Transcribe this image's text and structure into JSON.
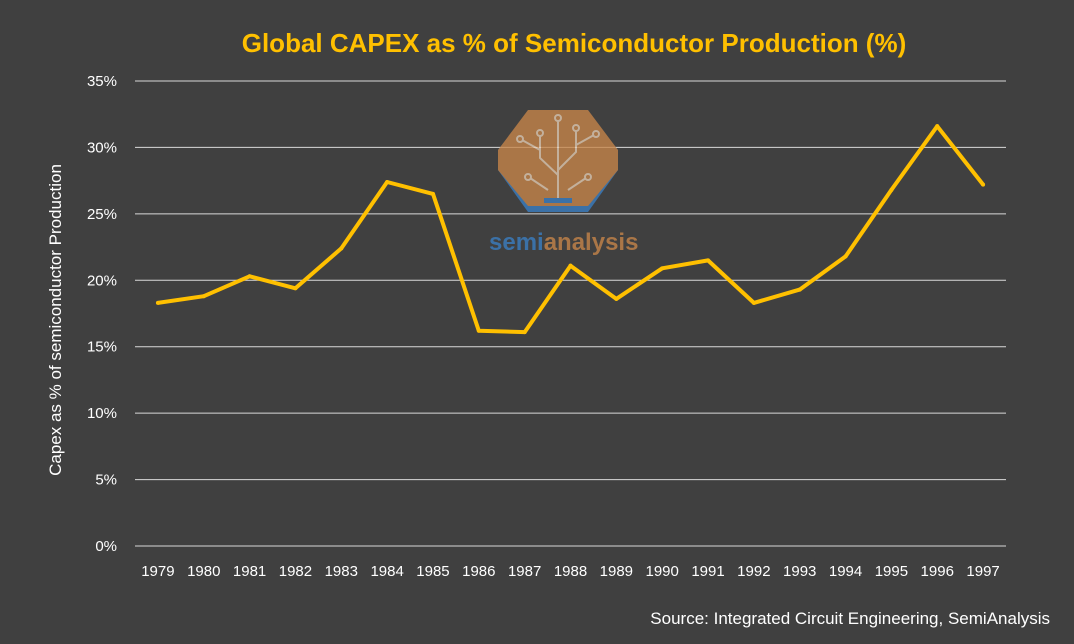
{
  "colors": {
    "background": "#404040",
    "title": "#FFC000",
    "line": "#FFC000",
    "grid": "#D9D9D9",
    "text": "#FFFFFF",
    "watermark_orange": "#C8864A",
    "watermark_blue": "#3A7FC4"
  },
  "watermark": {
    "text_semi": "semi",
    "text_analysis": "analysis"
  },
  "source": "Source: Integrated Circuit Engineering, SemiAnalysis",
  "chart_data": {
    "type": "line",
    "title": "Global CAPEX as % of Semiconductor Production (%)",
    "xlabel": "",
    "ylabel": "Capex as % of semiconductor Production",
    "categories": [
      "1979",
      "1980",
      "1981",
      "1982",
      "1983",
      "1984",
      "1985",
      "1986",
      "1987",
      "1988",
      "1989",
      "1990",
      "1991",
      "1992",
      "1993",
      "1994",
      "1995",
      "1996",
      "1997"
    ],
    "series": [
      {
        "name": "Capex as % of semiconductor Production",
        "values": [
          18.3,
          18.8,
          20.3,
          19.4,
          22.4,
          27.4,
          26.5,
          16.2,
          16.1,
          21.1,
          18.6,
          20.9,
          21.5,
          18.3,
          19.3,
          21.8,
          26.8,
          31.6,
          27.2
        ]
      }
    ],
    "ylim": [
      0,
      35
    ],
    "yticks": [
      0,
      5,
      10,
      15,
      20,
      25,
      30,
      35
    ],
    "ytick_labels": [
      "0%",
      "5%",
      "10%",
      "15%",
      "20%",
      "25%",
      "30%",
      "35%"
    ],
    "grid": true,
    "legend": "none"
  }
}
